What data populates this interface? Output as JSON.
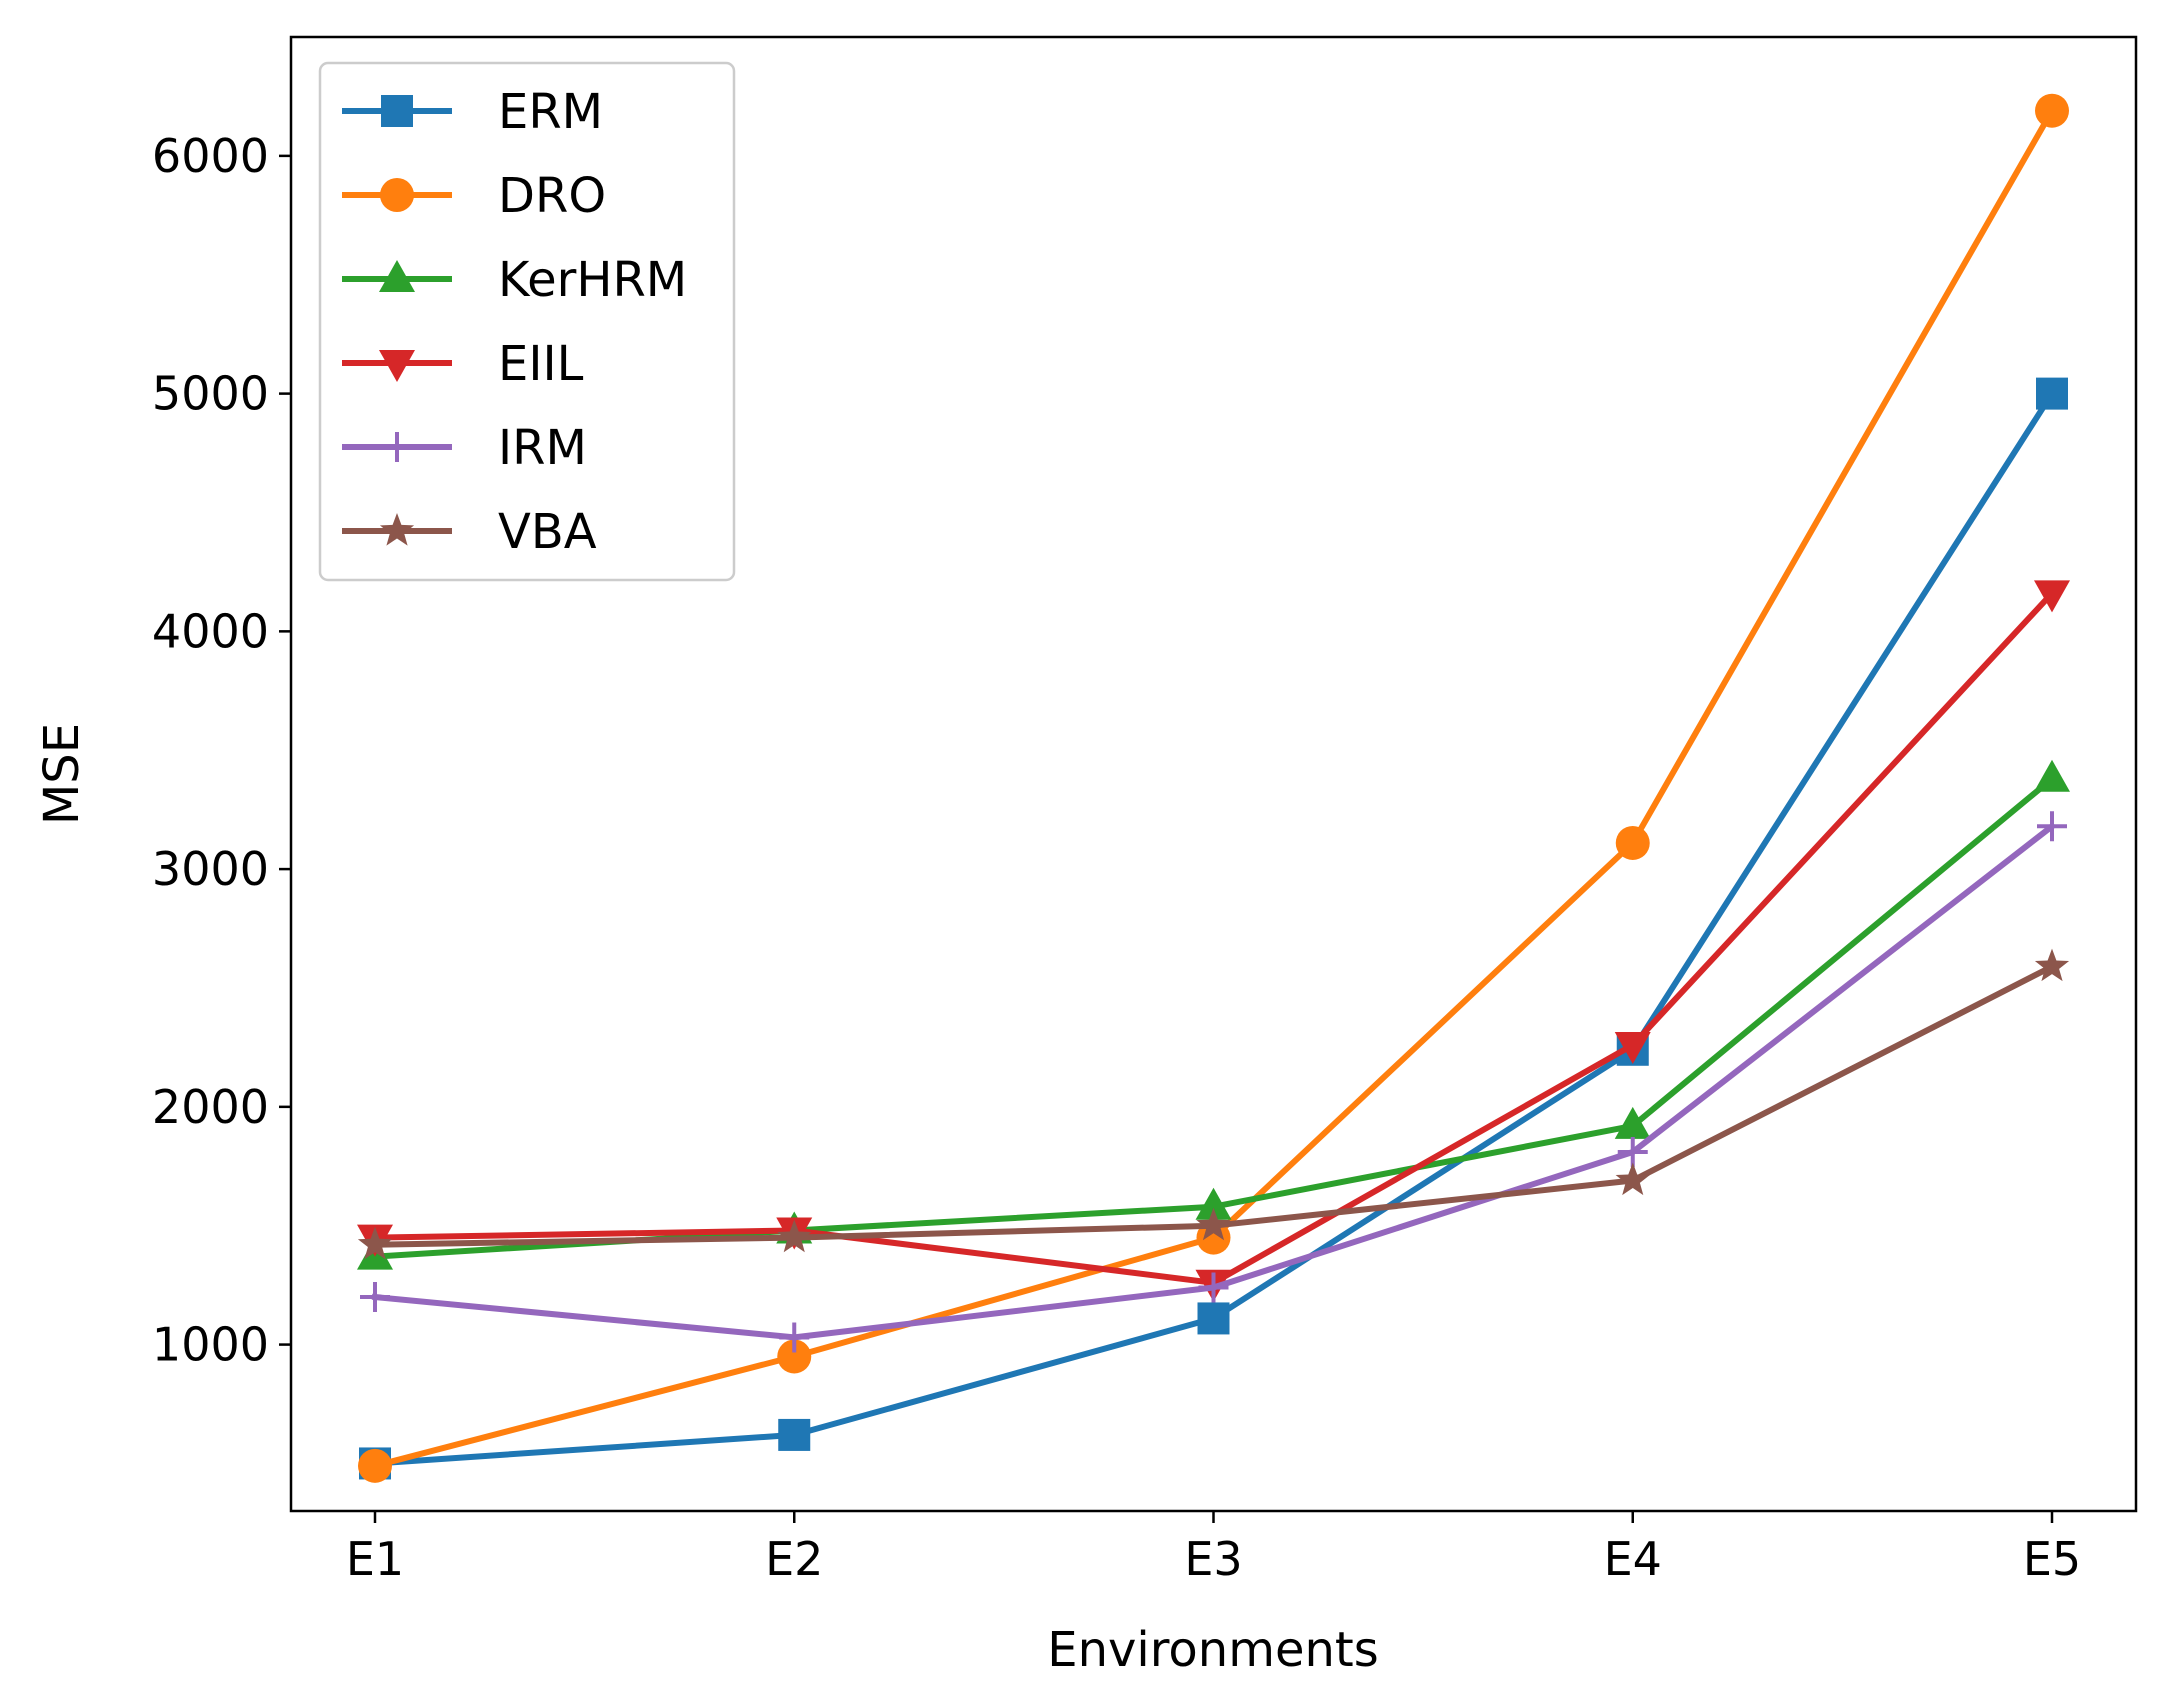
{
  "chart_data": {
    "type": "line",
    "title": "",
    "xlabel": "Environments",
    "ylabel": "MSE",
    "categories": [
      "E1",
      "E2",
      "E3",
      "E4",
      "E5"
    ],
    "ylim": [
      300,
      6500
    ],
    "yticks": [
      1000,
      2000,
      3000,
      4000,
      5000,
      6000
    ],
    "legend_position": "top-left",
    "series": [
      {
        "name": "ERM",
        "color": "#1f77b4",
        "marker": "square",
        "values": [
          500,
          620,
          1110,
          2240,
          5000
        ]
      },
      {
        "name": "DRO",
        "color": "#ff7f0e",
        "marker": "circle",
        "values": [
          490,
          950,
          1450,
          3110,
          6190
        ]
      },
      {
        "name": "KerHRM",
        "color": "#2ca02c",
        "marker": "triangle-up",
        "values": [
          1370,
          1480,
          1580,
          1920,
          3380
        ]
      },
      {
        "name": "EIIL",
        "color": "#d62728",
        "marker": "triangle-down",
        "values": [
          1450,
          1480,
          1260,
          2260,
          4160
        ]
      },
      {
        "name": "IRM",
        "color": "#9467bd",
        "marker": "plus",
        "values": [
          1200,
          1030,
          1240,
          1810,
          3180
        ]
      },
      {
        "name": "VBA",
        "color": "#8c564b",
        "marker": "star",
        "values": [
          1420,
          1450,
          1500,
          1690,
          2590
        ]
      }
    ]
  }
}
